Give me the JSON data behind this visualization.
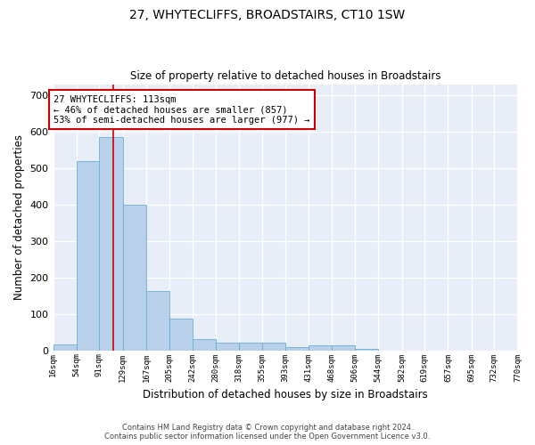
{
  "title": "27, WHYTECLIFFS, BROADSTAIRS, CT10 1SW",
  "subtitle": "Size of property relative to detached houses in Broadstairs",
  "xlabel": "Distribution of detached houses by size in Broadstairs",
  "ylabel": "Number of detached properties",
  "bar_color": "#b8d0ea",
  "bar_edge_color": "#6aaed6",
  "background_color": "#e8eef8",
  "grid_color": "#ffffff",
  "property_line_x": 113,
  "property_line_color": "#cc0000",
  "annotation_text": "27 WHYTECLIFFS: 113sqm\n← 46% of detached houses are smaller (857)\n53% of semi-detached houses are larger (977) →",
  "annotation_box_color": "#cc0000",
  "bin_edges": [
    16,
    54,
    91,
    129,
    167,
    205,
    242,
    280,
    318,
    355,
    393,
    431,
    468,
    506,
    544,
    582,
    619,
    657,
    695,
    732,
    770
  ],
  "bar_heights": [
    15,
    520,
    585,
    400,
    163,
    88,
    32,
    20,
    22,
    20,
    10,
    13,
    13,
    5,
    0,
    0,
    0,
    0,
    0,
    0
  ],
  "tick_labels": [
    "16sqm",
    "54sqm",
    "91sqm",
    "129sqm",
    "167sqm",
    "205sqm",
    "242sqm",
    "280sqm",
    "318sqm",
    "355sqm",
    "393sqm",
    "431sqm",
    "468sqm",
    "506sqm",
    "544sqm",
    "582sqm",
    "619sqm",
    "657sqm",
    "695sqm",
    "732sqm",
    "770sqm"
  ],
  "footer_text": "Contains HM Land Registry data © Crown copyright and database right 2024.\nContains public sector information licensed under the Open Government Licence v3.0.",
  "ylim": [
    0,
    730
  ],
  "yticks": [
    0,
    100,
    200,
    300,
    400,
    500,
    600,
    700
  ],
  "figsize": [
    6.0,
    5.0
  ],
  "dpi": 100
}
